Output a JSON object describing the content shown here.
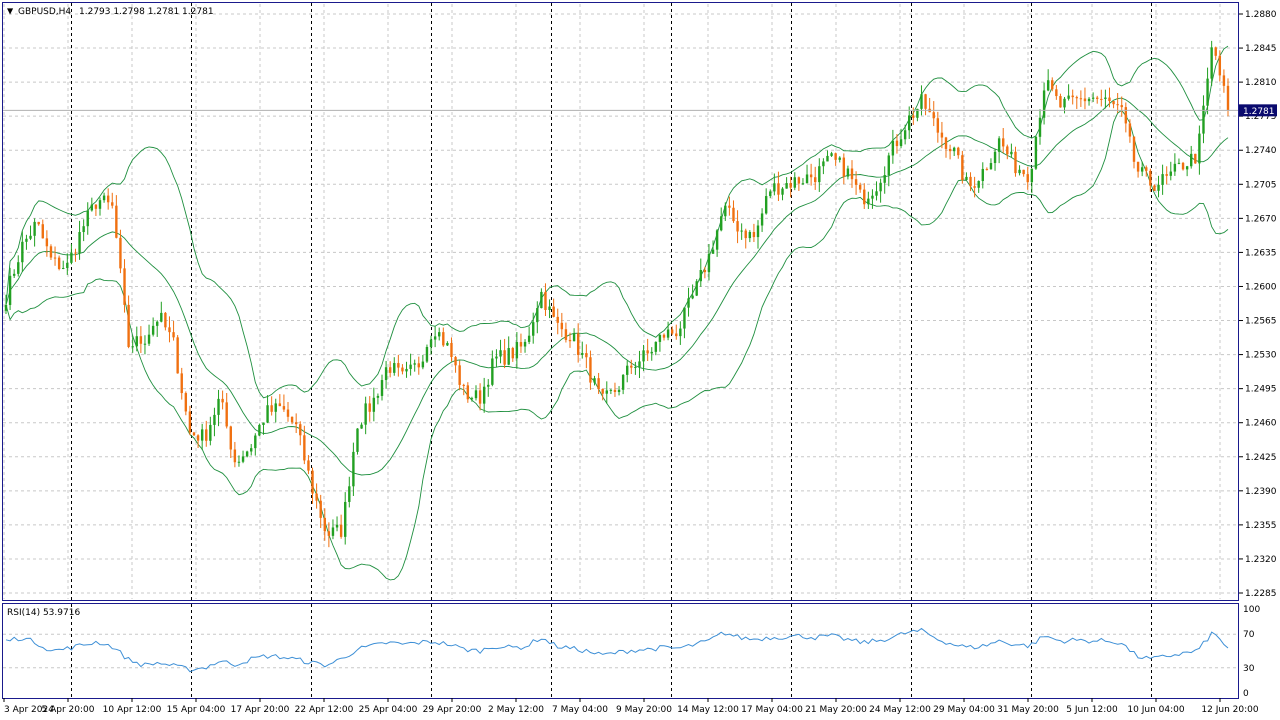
{
  "colors": {
    "background": "#ffffff",
    "frame": "#1a1a8c",
    "grid": "#c8c8c8",
    "separator": "#000000",
    "bull": "#22a022",
    "bear": "#f07010",
    "bands": "#1f8f3f",
    "rsi": "#3d8fd6",
    "current_price_box": "#0a0a6e",
    "current_price_text": "#ffffff"
  },
  "header": {
    "symbol": "GBPUSD,H4",
    "ohlc": "1.2793 1.2798 1.2781 1.2781"
  },
  "current_price": "1.2781",
  "chart_data": [
    {
      "type": "candlestick",
      "title": "GBPUSD,H4",
      "overlays": [
        "bollinger-upper",
        "bollinger-middle",
        "bollinger-lower"
      ],
      "grid": true,
      "ylim": [
        1.2285,
        1.288
      ],
      "y_ticks": [
        "1.2880",
        "1.2845",
        "1.2810",
        "1.2775",
        "1.2740",
        "1.2705",
        "1.2670",
        "1.2635",
        "1.2600",
        "1.2565",
        "1.2530",
        "1.2495",
        "1.2460",
        "1.2425",
        "1.2390",
        "1.2355",
        "1.2320",
        "1.2285"
      ],
      "x_ticks": [
        "3 Apr 2024",
        "5 Apr 20:00",
        "10 Apr 12:00",
        "15 Apr 04:00",
        "17 Apr 20:00",
        "22 Apr 12:00",
        "25 Apr 04:00",
        "29 Apr 20:00",
        "2 May 12:00",
        "7 May 04:00",
        "9 May 20:00",
        "14 May 12:00",
        "17 May 04:00",
        "21 May 20:00",
        "24 May 12:00",
        "29 May 04:00",
        "31 May 20:00",
        "5 Jun 12:00",
        "10 Jun 04:00",
        "12 Jun 20:00"
      ],
      "period_separators": 10,
      "close_anchors": [
        1.259,
        1.264,
        1.2665,
        1.2625,
        1.262,
        1.266,
        1.269,
        1.268,
        1.254,
        1.2545,
        1.257,
        1.254,
        1.245,
        1.2445,
        1.2485,
        1.242,
        1.2435,
        1.247,
        1.2475,
        1.2455,
        1.2395,
        1.2345,
        1.235,
        1.246,
        1.248,
        1.252,
        1.2505,
        1.252,
        1.256,
        1.2535,
        1.249,
        1.2485,
        1.2525,
        1.253,
        1.254,
        1.2595,
        1.256,
        1.255,
        1.252,
        1.248,
        1.2495,
        1.252,
        1.253,
        1.255,
        1.2555,
        1.259,
        1.263,
        1.268,
        1.266,
        1.265,
        1.27,
        1.2705,
        1.271,
        1.2715,
        1.273,
        1.272,
        1.269,
        1.2705,
        1.274,
        1.277,
        1.279,
        1.276,
        1.274,
        1.27,
        1.272,
        1.275,
        1.2725,
        1.2715,
        1.281,
        1.2785,
        1.279,
        1.2795,
        1.279,
        1.278,
        1.272,
        1.2705,
        1.271,
        1.2725,
        1.2735,
        1.285,
        1.2781
      ]
    },
    {
      "type": "line",
      "title": "RSI(14) 53.9716",
      "ylim": [
        0,
        100
      ],
      "y_ticks": [
        "100",
        "70",
        "30",
        "0"
      ],
      "values": [
        62,
        66,
        60,
        50,
        53,
        57,
        61,
        55,
        40,
        33,
        36,
        32,
        28,
        30,
        38,
        34,
        40,
        44,
        43,
        40,
        36,
        33,
        41,
        52,
        56,
        60,
        58,
        60,
        61,
        58,
        52,
        50,
        56,
        54,
        55,
        66,
        56,
        53,
        50,
        45,
        48,
        51,
        52,
        54,
        53,
        57,
        62,
        72,
        66,
        64,
        66,
        67,
        68,
        66,
        68,
        64,
        60,
        62,
        66,
        72,
        74,
        64,
        58,
        54,
        56,
        62,
        58,
        56,
        68,
        62,
        63,
        62,
        62,
        60,
        44,
        40,
        44,
        47,
        50,
        72,
        54
      ]
    }
  ]
}
